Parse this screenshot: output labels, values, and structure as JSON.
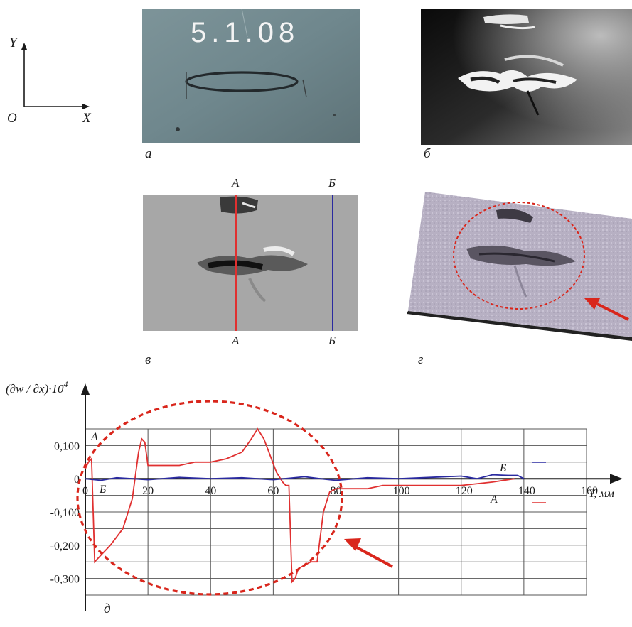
{
  "coordinate_axes": {
    "y_label": "Y",
    "origin_label": "O",
    "x_label": "X"
  },
  "panels": {
    "a": {
      "label": "а",
      "inscription": "5.1.08"
    },
    "b": {
      "label": "б"
    },
    "c": {
      "label": "в",
      "section_a_label": "А",
      "section_b_label": "Б"
    },
    "d": {
      "label": "г"
    },
    "e": {
      "label": "д"
    }
  },
  "colors": {
    "section_a": "#e03030",
    "section_b": "#2a2aa0",
    "highlight": "#d9261c"
  },
  "chart_data": {
    "type": "line",
    "ylabel": "(∂w / ∂x)·10",
    "ylabel_exponent": "4",
    "xlabel": "Y, мм",
    "xlim": [
      0,
      160
    ],
    "ylim": [
      -0.35,
      0.15
    ],
    "x_ticks": [
      0,
      20,
      40,
      60,
      80,
      100,
      120,
      140,
      160
    ],
    "x_tick_labels": [
      "0",
      "20",
      "40",
      "60",
      "80",
      "100",
      "120",
      "140",
      "160"
    ],
    "y_ticks": [
      0.1,
      0,
      -0.1,
      -0.2,
      -0.3
    ],
    "y_tick_labels": [
      "0,100",
      "0",
      "-0,100",
      "-0,200",
      "-0,300"
    ],
    "grid": true,
    "series": [
      {
        "name": "А",
        "color": "#e03030",
        "x": [
          0,
          1,
          2,
          3,
          5,
          8,
          12,
          15,
          17,
          18,
          19,
          20,
          25,
          30,
          35,
          40,
          45,
          50,
          53,
          55,
          57,
          59,
          61,
          63,
          64,
          65,
          66,
          67,
          68,
          70,
          72,
          74,
          76,
          78,
          80,
          85,
          90,
          95,
          100,
          110,
          120,
          130,
          137
        ],
        "y": [
          0.03,
          0.05,
          0.06,
          -0.25,
          -0.23,
          -0.2,
          -0.15,
          -0.06,
          0.08,
          0.12,
          0.11,
          0.04,
          0.04,
          0.04,
          0.05,
          0.05,
          0.06,
          0.08,
          0.12,
          0.15,
          0.12,
          0.07,
          0.02,
          -0.01,
          -0.02,
          -0.02,
          -0.31,
          -0.3,
          -0.27,
          -0.26,
          -0.25,
          -0.25,
          -0.1,
          -0.04,
          -0.03,
          -0.03,
          -0.03,
          -0.02,
          -0.02,
          -0.02,
          -0.02,
          -0.01,
          0.0
        ]
      },
      {
        "name": "Б",
        "color": "#2a2aa0",
        "x": [
          0,
          5,
          10,
          15,
          20,
          30,
          40,
          50,
          60,
          70,
          75,
          80,
          90,
          100,
          110,
          120,
          125,
          130,
          135,
          138,
          140
        ],
        "y": [
          0,
          -0.005,
          0.003,
          0.0,
          -0.003,
          0.004,
          0.0,
          0.003,
          -0.003,
          0.006,
          0.0,
          -0.005,
          0.003,
          0.0,
          0.004,
          0.008,
          0.0,
          0.012,
          0.01,
          0.01,
          0.0
        ]
      }
    ],
    "legend": {
      "series_a_label": "А",
      "series_b_label": "Б",
      "series_b_inline_label": "Б"
    }
  }
}
